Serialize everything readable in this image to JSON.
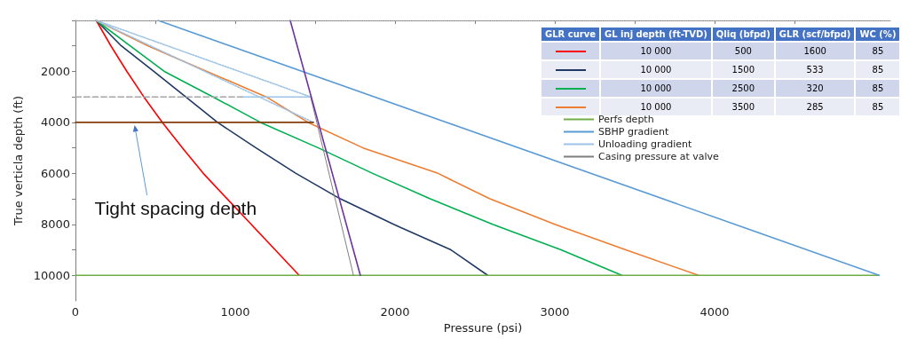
{
  "chart_data": {
    "type": "line",
    "xlabel": "Pressure (psi)",
    "ylabel": "True verticla depth (ft)",
    "xlim": [
      0,
      5100
    ],
    "ylim": [
      11000,
      0
    ],
    "xticks": [
      0,
      {
        "value": 500,
        "label": null
      },
      1000,
      {
        "value": 1500,
        "label": null
      },
      2000,
      {
        "value": 2500,
        "label": null
      },
      3000,
      {
        "value": 3500,
        "label": null
      },
      4000,
      {
        "value": 4500,
        "label": null
      }
    ],
    "yticks": [
      {
        "value": 0,
        "label": null
      },
      {
        "value": 1000,
        "label": null
      },
      2000,
      {
        "value": 3000,
        "label": null
      },
      4000,
      {
        "value": 5000,
        "label": null
      },
      6000,
      {
        "value": 7000,
        "label": null
      },
      8000,
      {
        "value": 9000,
        "label": null
      },
      10000
    ],
    "grid": false,
    "legend": "top right",
    "marker": "none",
    "series": [
      {
        "color": "#ff0000",
        "x": [
          130,
          222,
          322,
          428,
          544,
          670,
          800,
          950,
          1100,
          1250,
          1400
        ],
        "values": [
          0,
          1000,
          2000,
          3000,
          4000,
          5000,
          6000,
          7000,
          8000,
          9000,
          10000
        ]
      },
      {
        "color": "#1f3864",
        "x": [
          130,
          287,
          490,
          690,
          889,
          1130,
          1380,
          1658,
          1991,
          2350,
          2580
        ],
        "values": [
          0,
          1000,
          2000,
          3000,
          4000,
          5000,
          6000,
          7000,
          8000,
          9000,
          10000
        ]
      },
      {
        "color": "#00b050",
        "x": [
          130,
          342,
          556,
          861,
          1158,
          1520,
          1860,
          2220,
          2611,
          3039,
          3420
        ],
        "values": [
          0,
          1000,
          2000,
          3000,
          4000,
          5000,
          6000,
          7000,
          8000,
          9000,
          10000
        ]
      },
      {
        "color": "#ed7d31",
        "x": [
          130,
          455,
          822,
          1194,
          1456,
          1800,
          2269,
          2594,
          3000,
          3444,
          3900
        ],
        "values": [
          0,
          1000,
          2000,
          3000,
          4000,
          5000,
          6000,
          7000,
          8000,
          9000,
          10000
        ]
      },
      {
        "name": "Perfs depth",
        "color": "#70ad47",
        "x": [
          0,
          5030
        ],
        "values": [
          10000,
          10000
        ]
      },
      {
        "name": "SBHP gradient",
        "color": "#5b9bd5",
        "x": [
          517,
          5030
        ],
        "values": [
          0,
          10000
        ]
      },
      {
        "name": "Unloading gradient",
        "color": "#9dc3e6",
        "line_style": "dotted",
        "x": [
          130,
          1472
        ],
        "values": [
          0,
          3000
        ]
      },
      {
        "color": "#9dc3e6",
        "line_style": "dotted",
        "x": [
          130,
          1489
        ],
        "values": [
          0,
          4000
        ]
      },
      {
        "color": "#9dc3e6",
        "x": [
          1044,
          1472
        ],
        "values": [
          3000,
          3000
        ]
      },
      {
        "color": "#a6a6a6",
        "line_style": "dashed",
        "x": [
          0,
          1044
        ],
        "values": [
          3000,
          3000
        ]
      },
      {
        "name": "Casing pressure at valve",
        "color": "#7f7f7f",
        "x": [
          1472,
          1740
        ],
        "values": [
          3000,
          10000
        ]
      },
      {
        "color": "#7030a0",
        "x": [
          1344,
          1783
        ],
        "values": [
          0,
          10000
        ]
      },
      {
        "color": "#843c0c",
        "x": [
          0,
          1489
        ],
        "values": [
          4000,
          4000
        ]
      }
    ],
    "ref_lines": [
      {
        "axis": "y",
        "value": 0,
        "color": "#a6a6a6",
        "line_style": "dotted"
      }
    ],
    "annotations": [
      {
        "text": "Tight spacing depth",
        "x": 370,
        "y": 4000
      },
      "GLR curve",
      "GL inj depth (ft-TVD)",
      "Qliq (bfpd)",
      "GLR (scf/bfpd)",
      "WC (%)",
      "10 000",
      "500",
      "1600",
      "85",
      "10 000",
      "1500",
      "533",
      "85",
      "10 000",
      "2500",
      "320",
      "85",
      "10 000",
      "3500",
      "285",
      "85"
    ]
  }
}
